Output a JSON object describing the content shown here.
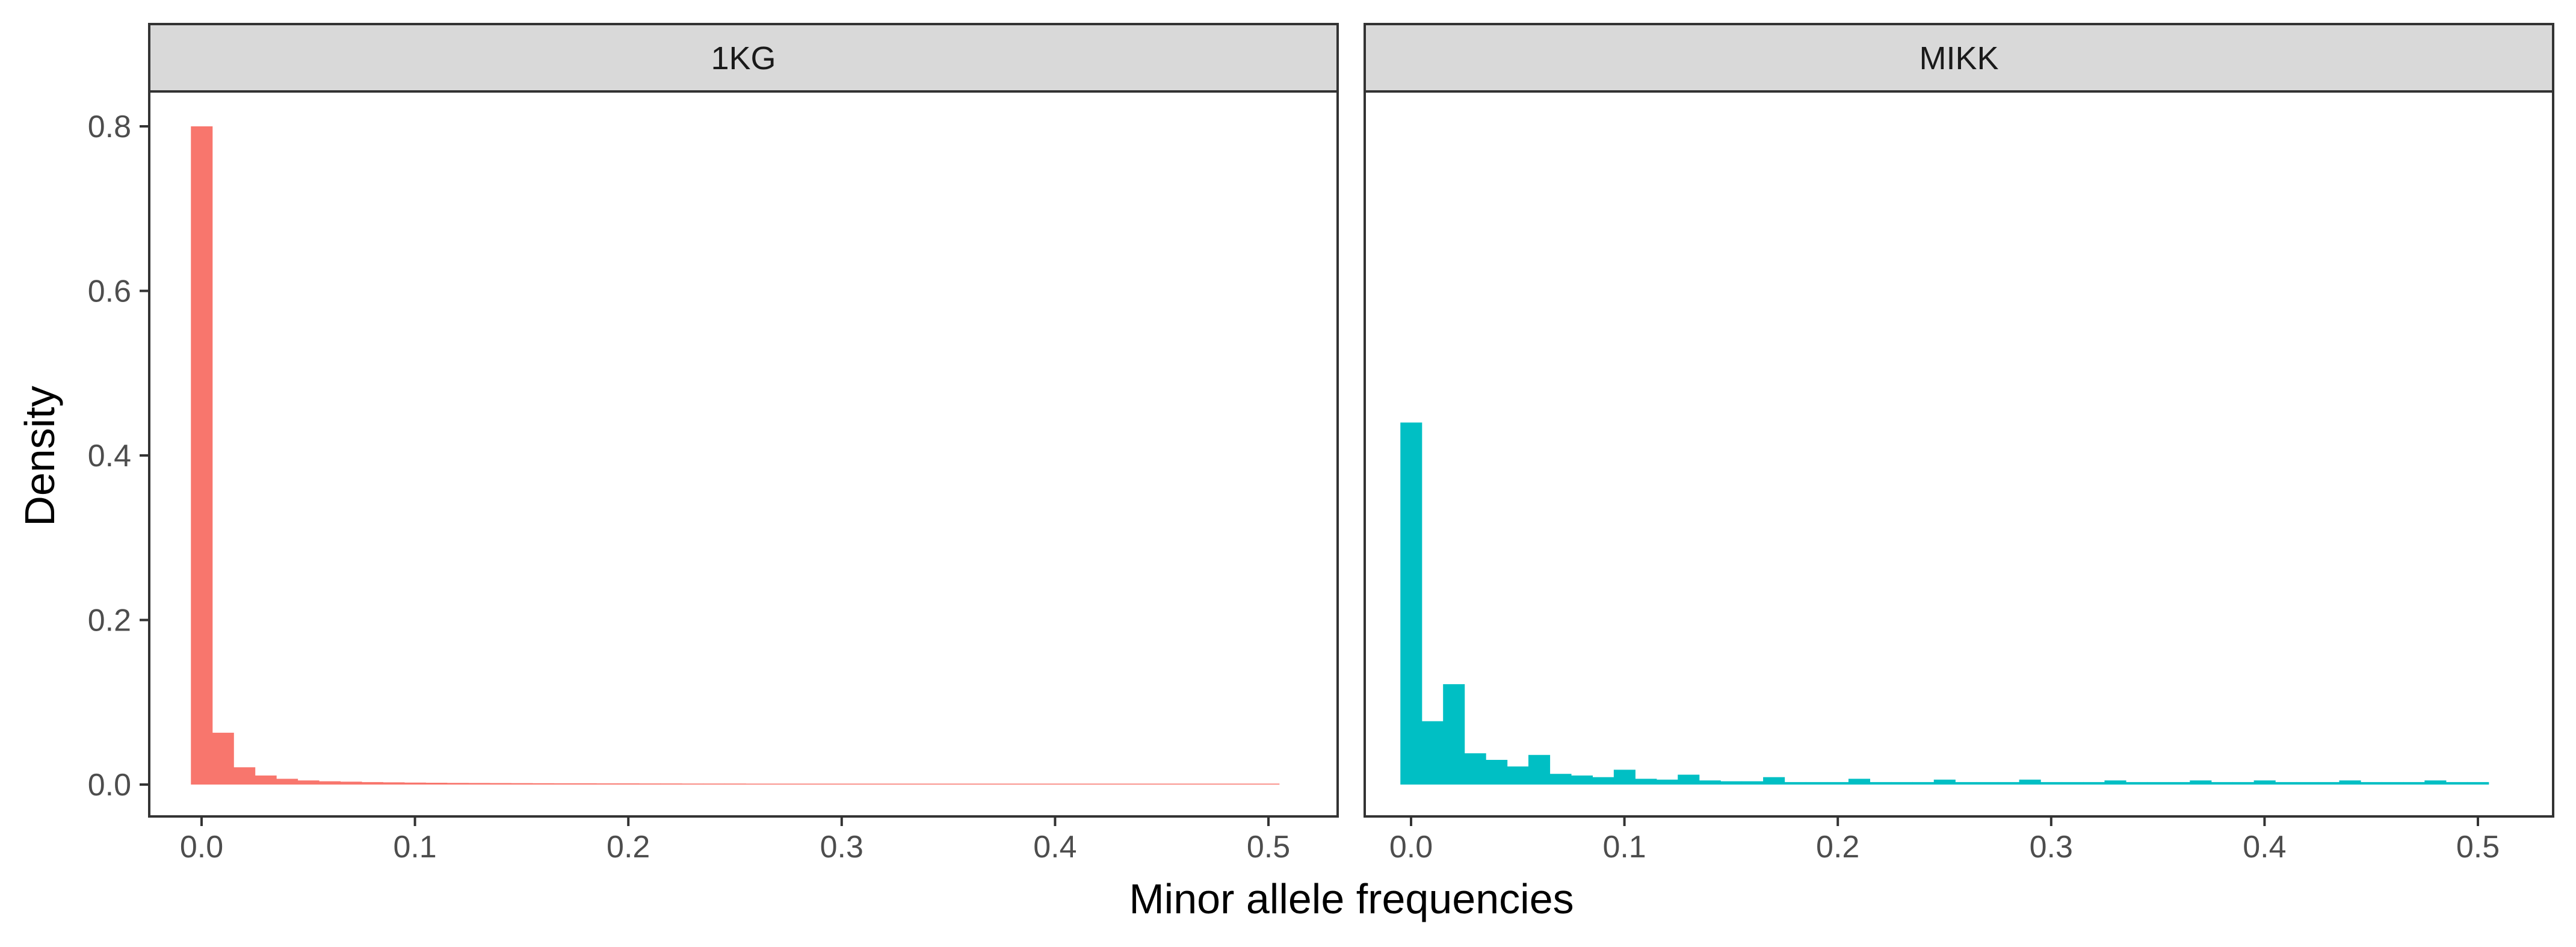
{
  "chart_data": {
    "type": "bar",
    "xlabel": "Minor allele frequencies",
    "ylabel": "Density",
    "ylim": [
      0,
      0.8
    ],
    "y_ticks": [
      0.0,
      0.2,
      0.4,
      0.6,
      0.8
    ],
    "y_tick_labels": [
      "0.0",
      "0.2",
      "0.4",
      "0.6",
      "0.8"
    ],
    "x_ticks": [
      0.0,
      0.1,
      0.2,
      0.3,
      0.4,
      0.5
    ],
    "x_tick_labels": [
      "0.0",
      "0.1",
      "0.2",
      "0.3",
      "0.4",
      "0.5"
    ],
    "bin_width": 0.01,
    "bin_starts": [
      -0.005,
      0.005,
      0.015,
      0.025,
      0.035,
      0.045,
      0.055,
      0.065,
      0.075,
      0.085,
      0.095,
      0.105,
      0.115,
      0.125,
      0.135,
      0.145,
      0.155,
      0.165,
      0.175,
      0.185,
      0.195,
      0.205,
      0.215,
      0.225,
      0.235,
      0.245,
      0.255,
      0.265,
      0.275,
      0.285,
      0.295,
      0.305,
      0.315,
      0.325,
      0.335,
      0.345,
      0.355,
      0.365,
      0.375,
      0.385,
      0.395,
      0.405,
      0.415,
      0.425,
      0.435,
      0.445,
      0.455,
      0.465,
      0.475,
      0.485,
      0.495
    ],
    "grid": false,
    "legend": "none",
    "panels": [
      {
        "strip_label": "1KG",
        "color": "#F8766D",
        "values": [
          0.8,
          0.063,
          0.021,
          0.011,
          0.007,
          0.005,
          0.004,
          0.0035,
          0.003,
          0.0027,
          0.0024,
          0.0022,
          0.002,
          0.0019,
          0.0018,
          0.0017,
          0.0016,
          0.0015,
          0.0015,
          0.0014,
          0.0014,
          0.0013,
          0.0013,
          0.0012,
          0.0012,
          0.0012,
          0.0011,
          0.0011,
          0.0011,
          0.001,
          0.001,
          0.001,
          0.001,
          0.001,
          0.0009,
          0.0009,
          0.0009,
          0.0009,
          0.0009,
          0.0009,
          0.0008,
          0.0008,
          0.0008,
          0.0008,
          0.0008,
          0.0008,
          0.0008,
          0.0008,
          0.0008,
          0.0008,
          0.0008
        ]
      },
      {
        "strip_label": "MIKK",
        "color": "#00BFC4",
        "values": [
          0.44,
          0.077,
          0.122,
          0.038,
          0.03,
          0.022,
          0.036,
          0.013,
          0.011,
          0.009,
          0.018,
          0.007,
          0.006,
          0.012,
          0.005,
          0.004,
          0.004,
          0.009,
          0.003,
          0.003,
          0.003,
          0.007,
          0.003,
          0.003,
          0.003,
          0.006,
          0.003,
          0.003,
          0.003,
          0.006,
          0.003,
          0.003,
          0.003,
          0.005,
          0.003,
          0.003,
          0.003,
          0.005,
          0.003,
          0.003,
          0.005,
          0.003,
          0.003,
          0.003,
          0.005,
          0.003,
          0.003,
          0.003,
          0.005,
          0.003,
          0.003
        ]
      }
    ]
  }
}
